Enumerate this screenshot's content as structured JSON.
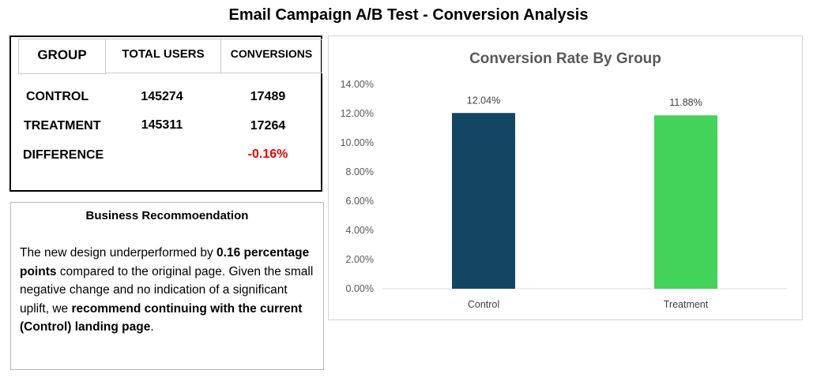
{
  "page_title": "Email Campaign A/B Test - Conversion Analysis",
  "table": {
    "headers": {
      "group": "GROUP",
      "total_users": "TOTAL USERS",
      "conversions": "CONVERSIONS"
    },
    "rows": [
      {
        "group": "CONTROL",
        "total_users": "145274",
        "conversions": "17489"
      },
      {
        "group": "TREATMENT",
        "total_users": "145311",
        "conversions": "17264"
      }
    ],
    "difference": {
      "label": "DIFFERENCE",
      "value": "-0.16%"
    }
  },
  "recommendation": {
    "title": "Business Recommoendation",
    "t1": "The new design underperformed by ",
    "b1": "0.16 percentage points",
    "t2": " compared to the original page. Given the small negative change and no indication of a significant uplift, we ",
    "b2": "recommend continuing with the current (Control) landing page",
    "t3": "."
  },
  "chart_data": {
    "type": "bar",
    "title": "Conversion Rate By Group",
    "categories": [
      "Control",
      "Treatment"
    ],
    "values": [
      12.04,
      11.88
    ],
    "value_labels": [
      "12.04%",
      "11.88%"
    ],
    "ylim": [
      0,
      14
    ],
    "yticks": [
      "0.00%",
      "2.00%",
      "4.00%",
      "6.00%",
      "8.00%",
      "10.00%",
      "12.00%",
      "14.00%"
    ],
    "colors": [
      "#134663",
      "#44d35a"
    ],
    "grid": false,
    "xlabel": "",
    "ylabel": ""
  }
}
